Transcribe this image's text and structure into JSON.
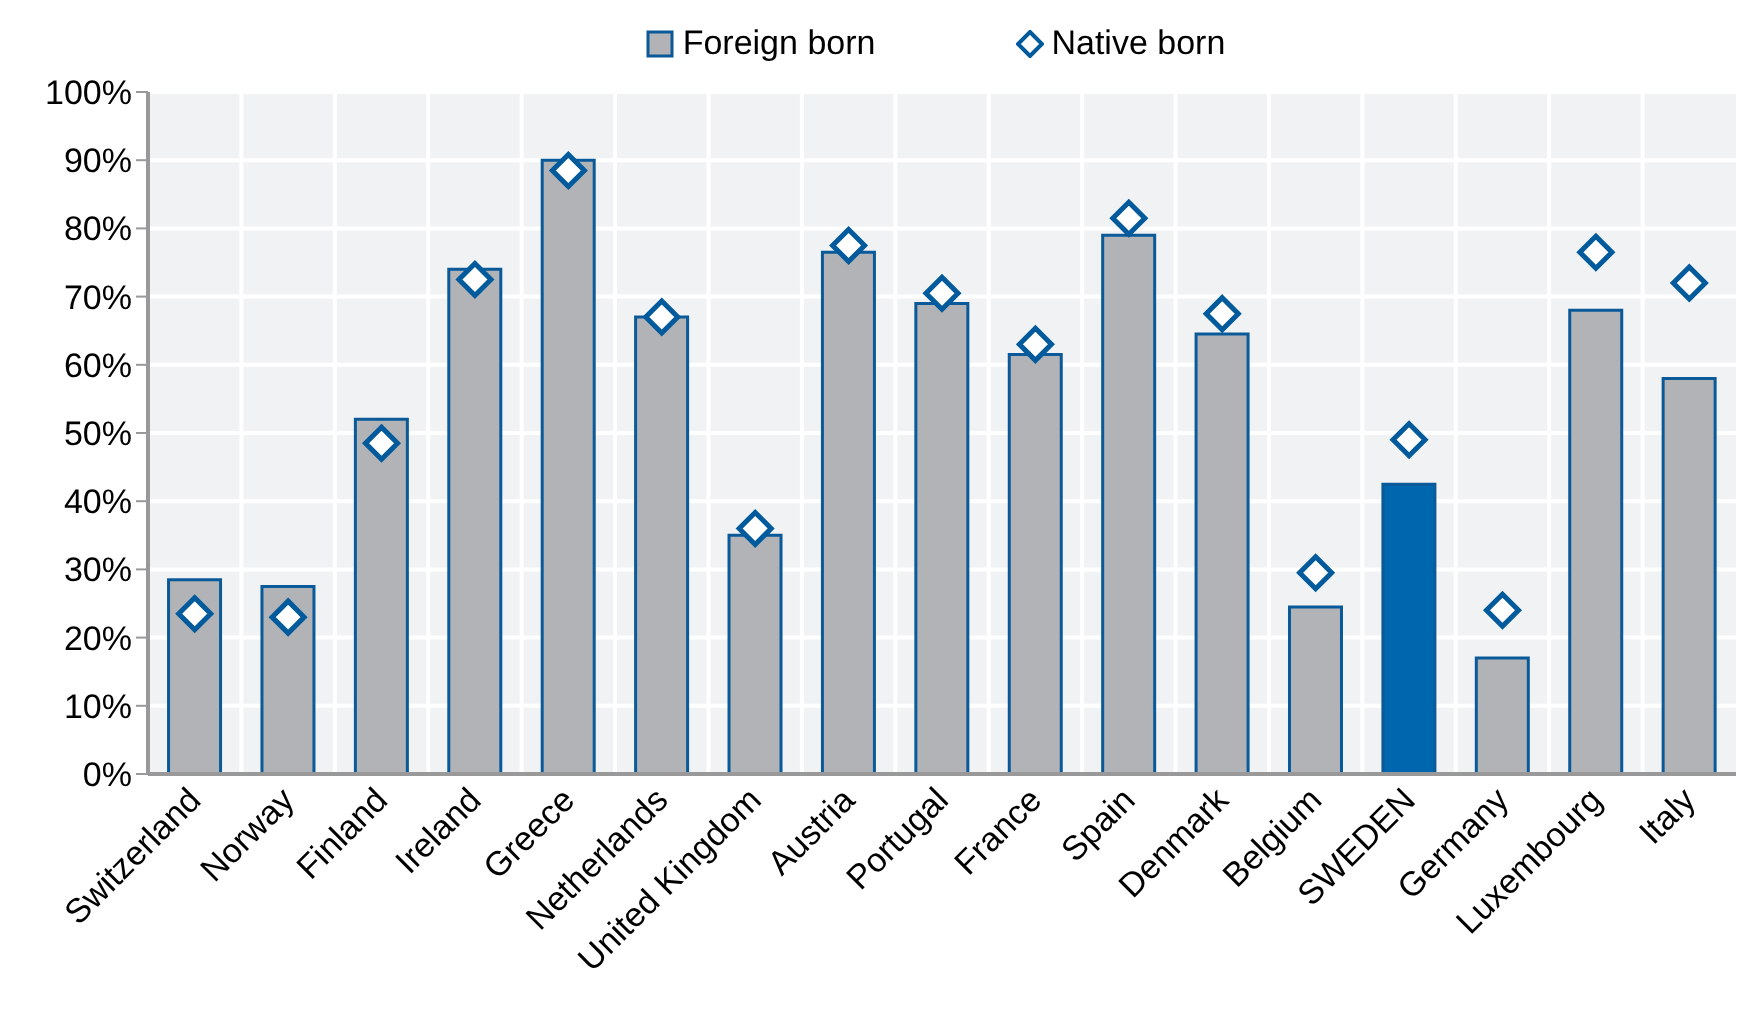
{
  "chart_data": {
    "type": "bar",
    "categories": [
      "Switzerland",
      "Norway",
      "Finland",
      "Ireland",
      "Greece",
      "Netherlands",
      "United Kingdom",
      "Austria",
      "Portugal",
      "France",
      "Spain",
      "Denmark",
      "Belgium",
      "SWEDEN",
      "Germany",
      "Luxembourg",
      "Italy"
    ],
    "series": [
      {
        "name": "Foreign born",
        "color": "#b1b3b6",
        "colors": [
          "#b1b3b6",
          "#b1b3b6",
          "#b1b3b6",
          "#b1b3b6",
          "#b1b3b6",
          "#b1b3b6",
          "#b1b3b6",
          "#b1b3b6",
          "#b1b3b6",
          "#b1b3b6",
          "#b1b3b6",
          "#b1b3b6",
          "#b1b3b6",
          "#0066ad",
          "#b1b3b6",
          "#b1b3b6",
          "#b1b3b6"
        ],
        "values": [
          28.5,
          27.5,
          52,
          74,
          90,
          67,
          35,
          76.5,
          69,
          61.5,
          79,
          64.5,
          24.5,
          42.5,
          17,
          68,
          58
        ]
      },
      {
        "name": "Native born",
        "type": "scatter",
        "marker": "diamond",
        "color": "#005a9c",
        "values": [
          23.5,
          23,
          48.5,
          72.5,
          88.5,
          67,
          36,
          77.5,
          70.5,
          63,
          81.5,
          67.5,
          29.5,
          49,
          24,
          76.5,
          72
        ]
      }
    ],
    "ylim": [
      0,
      100
    ],
    "yticks": [
      {
        "value": 0,
        "label": "0%"
      },
      {
        "value": 10,
        "label": "10%"
      },
      {
        "value": 20,
        "label": "20%"
      },
      {
        "value": 30,
        "label": "30%"
      },
      {
        "value": 40,
        "label": "40%"
      },
      {
        "value": 50,
        "label": "50%"
      },
      {
        "value": 60,
        "label": "60%"
      },
      {
        "value": 70,
        "label": "70%"
      },
      {
        "value": 80,
        "label": "80%"
      },
      {
        "value": 90,
        "label": "90%"
      },
      {
        "value": 100,
        "label": "100%"
      }
    ],
    "grid": true,
    "legend": "top"
  }
}
